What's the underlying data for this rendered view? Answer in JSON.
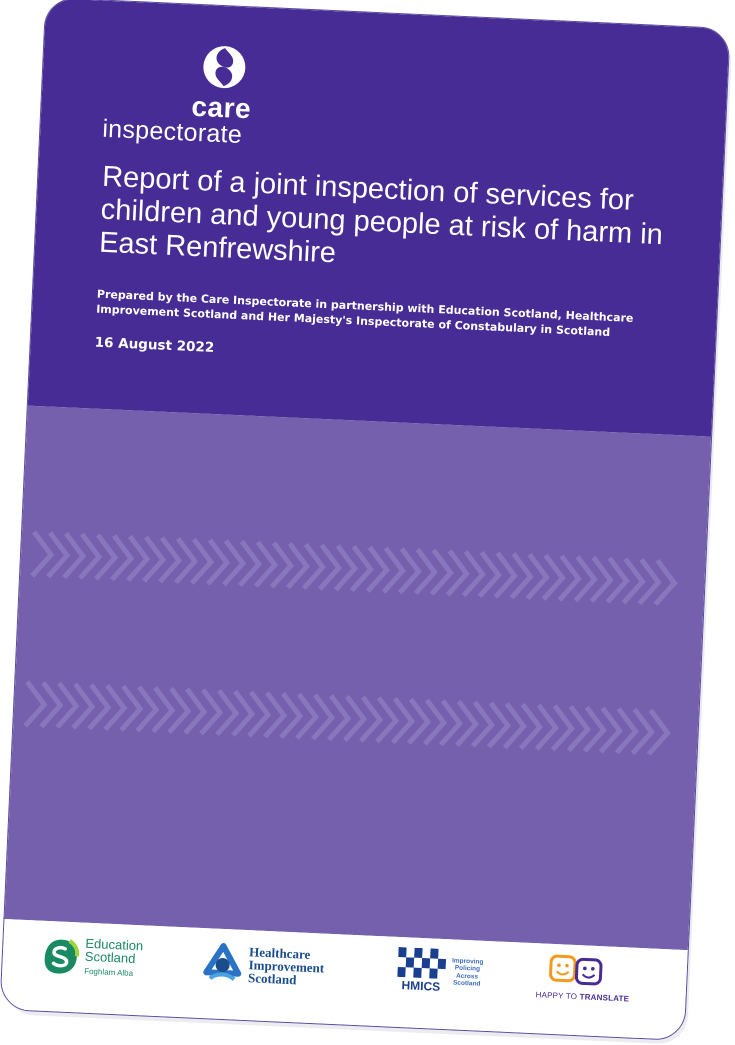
{
  "brand": {
    "line1": "care",
    "line2": "inspectorate"
  },
  "report": {
    "title": "Report of a joint inspection of services for children and young people at risk of harm in East Renfrewshire",
    "prepared_by": "Prepared by the Care Inspectorate in partnership with Education Scotland, Healthcare Improvement Scotland and Her Majesty's Inspectorate of Constabulary in Scotland",
    "date": "16 August 2022"
  },
  "partners": {
    "education_scotland": {
      "line1": "Education",
      "line2": "Scotland",
      "sub": "Foghlam Alba"
    },
    "healthcare_improvement": {
      "line1": "Healthcare",
      "line2": "Improvement",
      "line3": "Scotland"
    },
    "hmics": {
      "abbr": "HMICS",
      "line1": "Improving",
      "line2": "Policing",
      "line3": "Across",
      "line4": "Scotland"
    },
    "happy_to_translate": {
      "part1": "HAPPY TO ",
      "part2": "TRANSLATE"
    }
  },
  "colors": {
    "header_purple": "#472c95",
    "panel_purple": "#7560ad",
    "chevron": "#8f7fc2",
    "edu_green": "#1a8a63",
    "his_blue": "#1b4d8c",
    "htt_orange": "#f39a1e"
  }
}
